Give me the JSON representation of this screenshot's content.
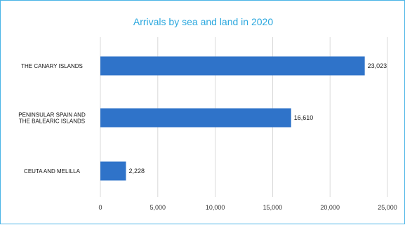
{
  "chart_data": {
    "type": "bar",
    "orientation": "horizontal",
    "title": "Arrivals by sea and land in 2020",
    "categories": [
      [
        "THE CANARY ISLANDS"
      ],
      [
        "PENINSULAR SPAIN AND",
        "THE BALEARIC ISLANDS"
      ],
      [
        "CEUTA AND MELILLA"
      ]
    ],
    "values": [
      23023,
      16610,
      2228
    ],
    "value_labels": [
      "23,023",
      "16,610",
      "2,228"
    ],
    "xlim": [
      0,
      25000
    ],
    "xticks": [
      0,
      5000,
      10000,
      15000,
      20000,
      25000
    ],
    "xtick_labels": [
      "0",
      "5,000",
      "10,000",
      "15,000",
      "20,000",
      "25,000"
    ],
    "grid": "vertical",
    "bar_color": "#2f73c9",
    "title_color": "#2aa7de",
    "border_color": "#4ab4e6"
  }
}
